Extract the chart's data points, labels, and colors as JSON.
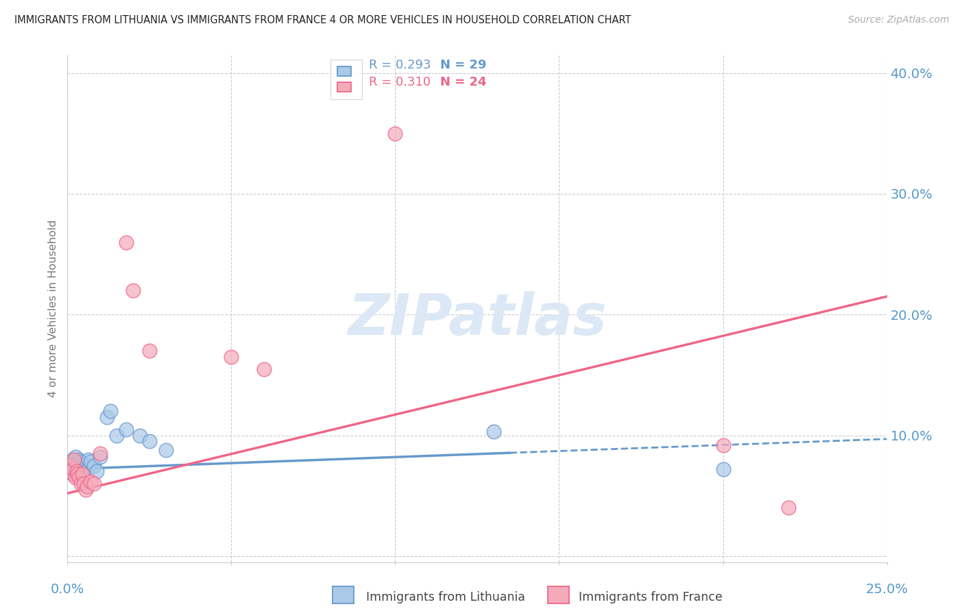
{
  "title": "IMMIGRANTS FROM LITHUANIA VS IMMIGRANTS FROM FRANCE 4 OR MORE VEHICLES IN HOUSEHOLD CORRELATION CHART",
  "source": "Source: ZipAtlas.com",
  "ylabel": "4 or more Vehicles in Household",
  "y_ticks": [
    0.0,
    0.1,
    0.2,
    0.3,
    0.4
  ],
  "x_ticks": [
    0.0,
    0.05,
    0.1,
    0.15,
    0.2,
    0.25
  ],
  "x_range": [
    0.0,
    0.25
  ],
  "y_range": [
    -0.005,
    0.415
  ],
  "legend_r1": "R = 0.293",
  "legend_n1": "N = 29",
  "legend_r2": "R = 0.310",
  "legend_n2": "N = 24",
  "color_lit_fill": "#aac8e8",
  "color_lit_edge": "#6699cc",
  "color_fra_fill": "#f5aabb",
  "color_fra_edge": "#ee6688",
  "color_axis": "#5599cc",
  "color_title": "#222222",
  "color_grid": "#cccccc",
  "color_source": "#aaaaaa",
  "watermark_color": "#dce8f5",
  "lit_x": [
    0.001,
    0.0015,
    0.0018,
    0.002,
    0.0022,
    0.0025,
    0.0028,
    0.003,
    0.0035,
    0.0038,
    0.004,
    0.0045,
    0.005,
    0.0055,
    0.006,
    0.0065,
    0.007,
    0.008,
    0.009,
    0.01,
    0.012,
    0.013,
    0.015,
    0.018,
    0.022,
    0.025,
    0.03,
    0.13,
    0.2
  ],
  "lit_y": [
    0.075,
    0.08,
    0.072,
    0.078,
    0.07,
    0.082,
    0.068,
    0.075,
    0.08,
    0.074,
    0.078,
    0.07,
    0.076,
    0.074,
    0.072,
    0.08,
    0.078,
    0.075,
    0.07,
    0.082,
    0.115,
    0.12,
    0.1,
    0.105,
    0.1,
    0.095,
    0.088,
    0.103,
    0.072
  ],
  "fra_x": [
    0.001,
    0.0015,
    0.0018,
    0.002,
    0.0025,
    0.0028,
    0.003,
    0.0035,
    0.004,
    0.0045,
    0.005,
    0.0055,
    0.006,
    0.007,
    0.008,
    0.01,
    0.018,
    0.02,
    0.025,
    0.05,
    0.06,
    0.1,
    0.2,
    0.22
  ],
  "fra_y": [
    0.075,
    0.068,
    0.072,
    0.08,
    0.065,
    0.07,
    0.068,
    0.065,
    0.06,
    0.068,
    0.06,
    0.055,
    0.058,
    0.062,
    0.06,
    0.085,
    0.26,
    0.22,
    0.17,
    0.165,
    0.155,
    0.35,
    0.092,
    0.04
  ],
  "trend_lit_x0": 0.0,
  "trend_lit_y0": 0.072,
  "trend_lit_x1": 0.25,
  "trend_lit_y1": 0.097,
  "trend_lit_solid_end": 0.135,
  "trend_fra_x0": 0.0,
  "trend_fra_y0": 0.052,
  "trend_fra_x1": 0.25,
  "trend_fra_y1": 0.215
}
